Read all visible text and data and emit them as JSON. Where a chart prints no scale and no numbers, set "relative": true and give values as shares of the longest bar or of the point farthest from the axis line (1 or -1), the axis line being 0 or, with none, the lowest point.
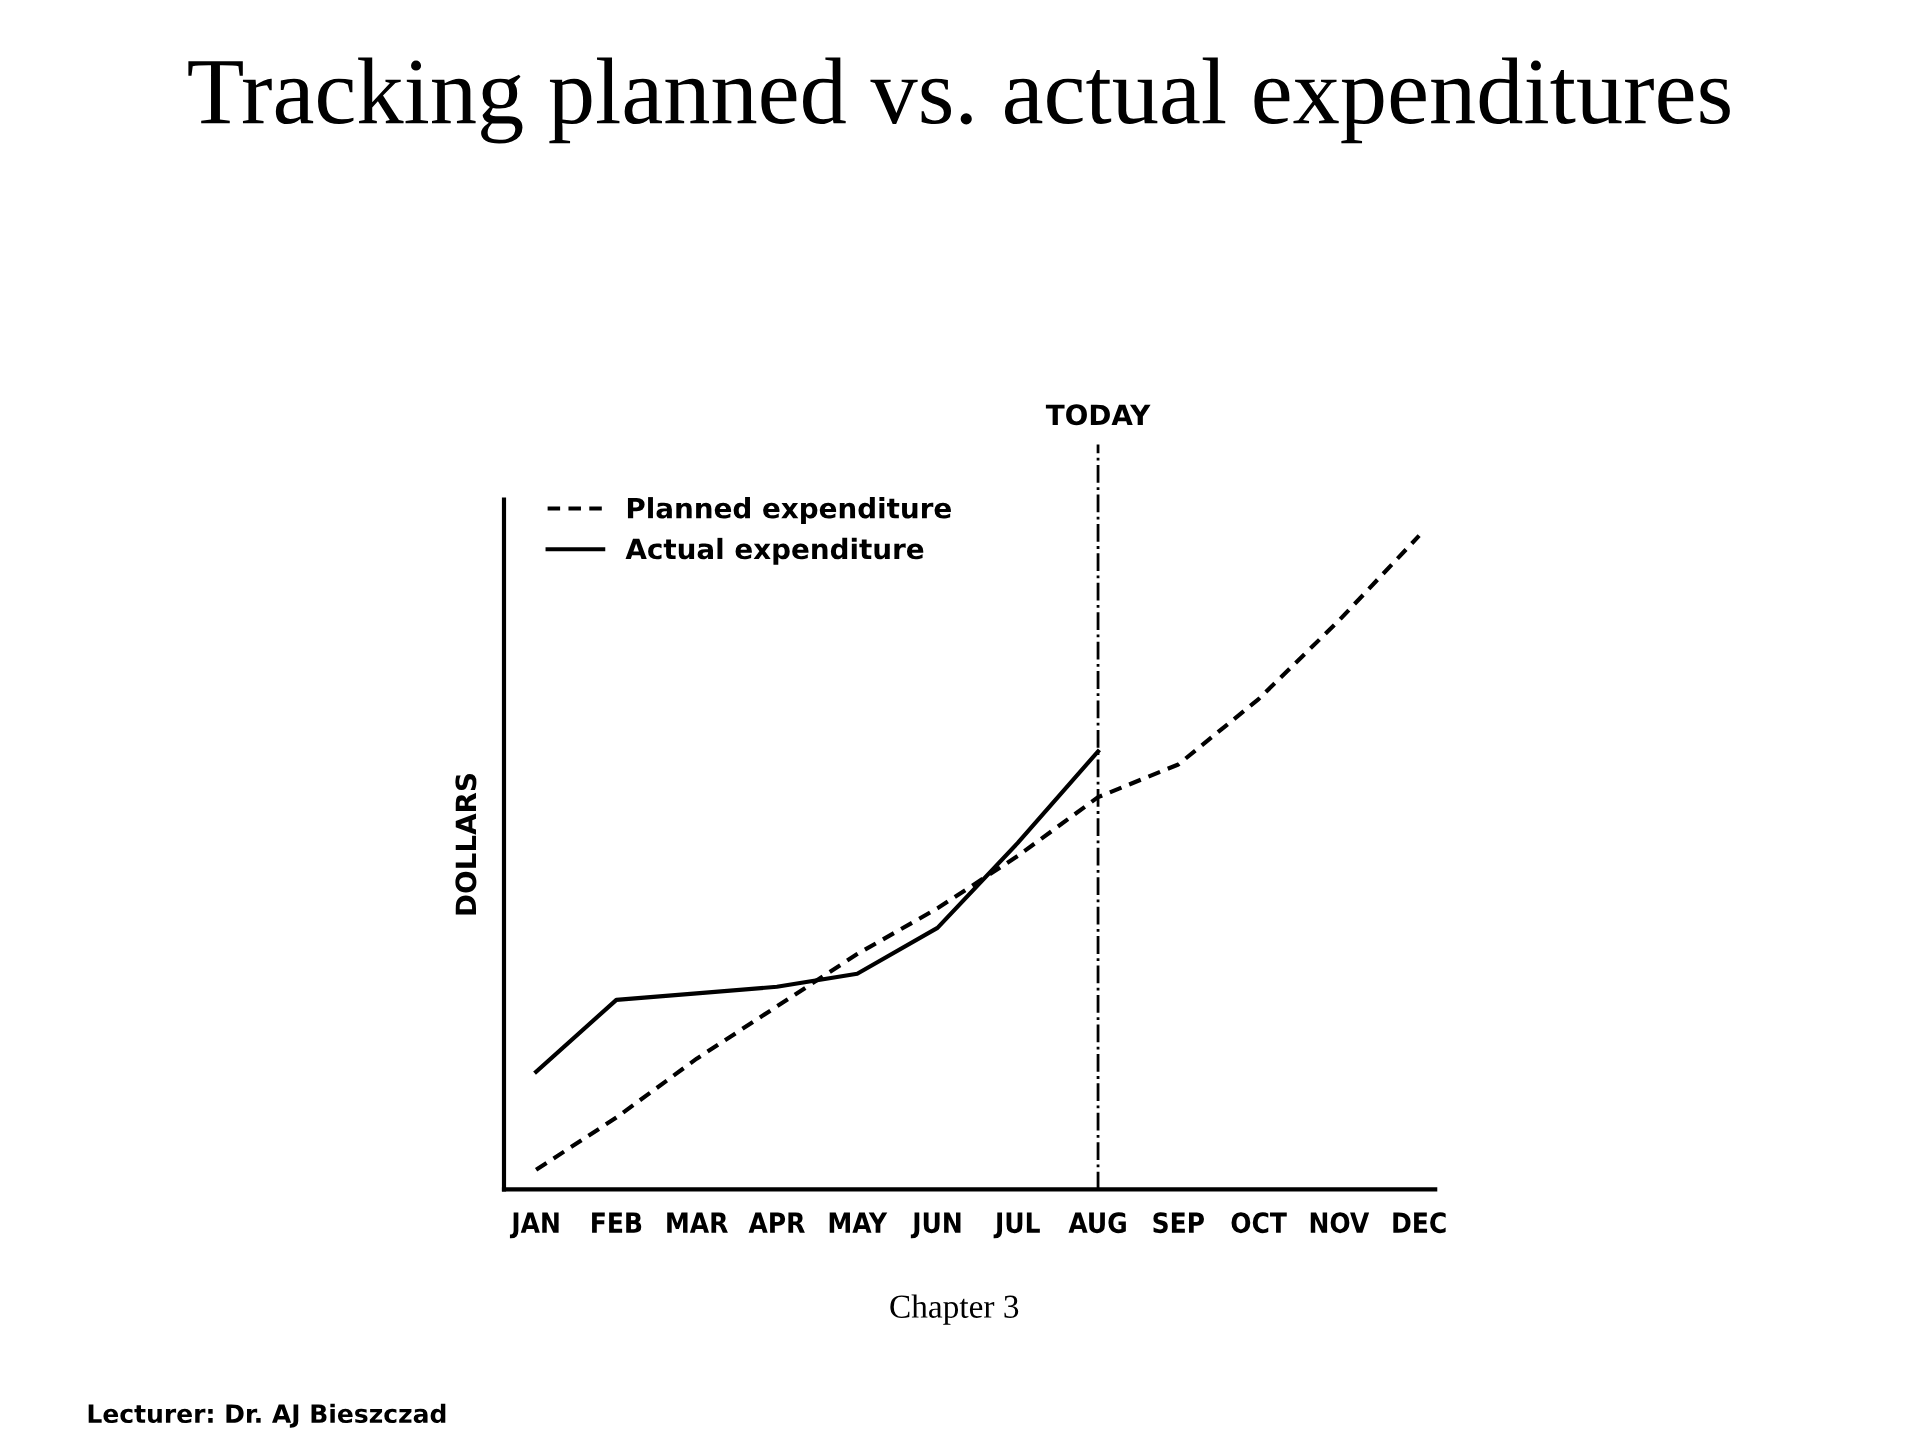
{
  "chart_data": {
    "type": "line",
    "title": "Tracking planned vs. actual expenditures",
    "ylabel": "DOLLARS",
    "relative": true,
    "categories": [
      "JAN",
      "FEB",
      "MAR",
      "APR",
      "MAY",
      "JUN",
      "JUL",
      "AUG",
      "SEP",
      "OCT",
      "NOV",
      "DEC"
    ],
    "series": [
      {
        "name": "Planned expenditure",
        "color": "#000000",
        "line_style": "dashed",
        "values": [
          0.03,
          0.11,
          0.2,
          0.28,
          0.36,
          0.43,
          0.51,
          0.6,
          0.65,
          0.75,
          0.87,
          1
        ]
      },
      {
        "name": "Actual expenditure",
        "color": "#000000",
        "line_style": "solid",
        "values": [
          0.18,
          0.29,
          0.3,
          0.31,
          0.33,
          0.4,
          0.53,
          0.67,
          null,
          null,
          null,
          null
        ]
      }
    ],
    "ref_lines": [
      {
        "axis": "x",
        "value": "AUG",
        "label": "TODAY",
        "line_style": "dashdot"
      }
    ],
    "legend": "top left",
    "grid": false,
    "marker": "none",
    "annotations": [
      "Chapter 3",
      "Lecturer: Dr. AJ Bieszczad"
    ]
  }
}
